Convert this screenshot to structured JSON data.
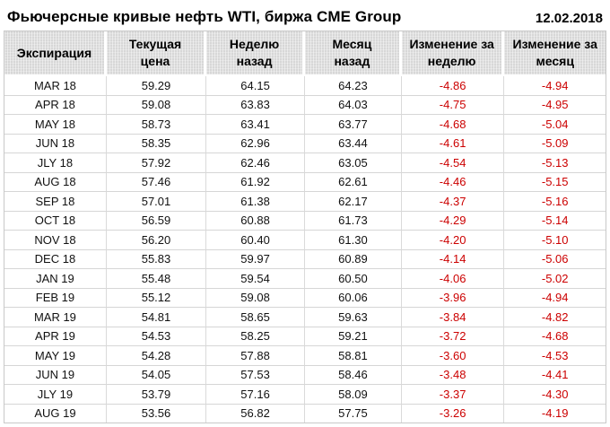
{
  "header": {
    "title": "Фьючерсные кривые нефть WTI, биржа CME Group",
    "date": "12.02.2018"
  },
  "colors": {
    "negative_value": "#cc0000",
    "header_background": "#d7d7d7",
    "grid_line": "#d6d6d6",
    "text": "#000000"
  },
  "chart_data": {
    "type": "table",
    "title": "Фьючерсные кривые нефть WTI, биржа CME Group",
    "date": "12.02.2018",
    "columns": [
      {
        "label": "Экспирация",
        "lines": [
          "Экспирация"
        ]
      },
      {
        "label": "Текущая цена",
        "lines": [
          "Текущая",
          "цена"
        ]
      },
      {
        "label": "Неделю назад",
        "lines": [
          "Неделю",
          "назад"
        ]
      },
      {
        "label": "Месяц назад",
        "lines": [
          "Месяц",
          "назад"
        ]
      },
      {
        "label": "Изменение за неделю",
        "lines": [
          "Изменение за",
          "неделю"
        ]
      },
      {
        "label": "Изменение за месяц",
        "lines": [
          "Изменение за",
          "месяц"
        ]
      }
    ],
    "rows": [
      [
        "MAR 18",
        "59.29",
        "64.15",
        "64.23",
        "-4.86",
        "-4.94"
      ],
      [
        "APR 18",
        "59.08",
        "63.83",
        "64.03",
        "-4.75",
        "-4.95"
      ],
      [
        "MAY 18",
        "58.73",
        "63.41",
        "63.77",
        "-4.68",
        "-5.04"
      ],
      [
        "JUN 18",
        "58.35",
        "62.96",
        "63.44",
        "-4.61",
        "-5.09"
      ],
      [
        "JLY 18",
        "57.92",
        "62.46",
        "63.05",
        "-4.54",
        "-5.13"
      ],
      [
        "AUG 18",
        "57.46",
        "61.92",
        "62.61",
        "-4.46",
        "-5.15"
      ],
      [
        "SEP 18",
        "57.01",
        "61.38",
        "62.17",
        "-4.37",
        "-5.16"
      ],
      [
        "OCT 18",
        "56.59",
        "60.88",
        "61.73",
        "-4.29",
        "-5.14"
      ],
      [
        "NOV 18",
        "56.20",
        "60.40",
        "61.30",
        "-4.20",
        "-5.10"
      ],
      [
        "DEC 18",
        "55.83",
        "59.97",
        "60.89",
        "-4.14",
        "-5.06"
      ],
      [
        "JAN 19",
        "55.48",
        "59.54",
        "60.50",
        "-4.06",
        "-5.02"
      ],
      [
        "FEB 19",
        "55.12",
        "59.08",
        "60.06",
        "-3.96",
        "-4.94"
      ],
      [
        "MAR 19",
        "54.81",
        "58.65",
        "59.63",
        "-3.84",
        "-4.82"
      ],
      [
        "APR 19",
        "54.53",
        "58.25",
        "59.21",
        "-3.72",
        "-4.68"
      ],
      [
        "MAY 19",
        "54.28",
        "57.88",
        "58.81",
        "-3.60",
        "-4.53"
      ],
      [
        "JUN 19",
        "54.05",
        "57.53",
        "58.46",
        "-3.48",
        "-4.41"
      ],
      [
        "JLY 19",
        "53.79",
        "57.16",
        "58.09",
        "-3.37",
        "-4.30"
      ],
      [
        "AUG 19",
        "53.56",
        "56.82",
        "57.75",
        "-3.26",
        "-4.19"
      ]
    ]
  }
}
